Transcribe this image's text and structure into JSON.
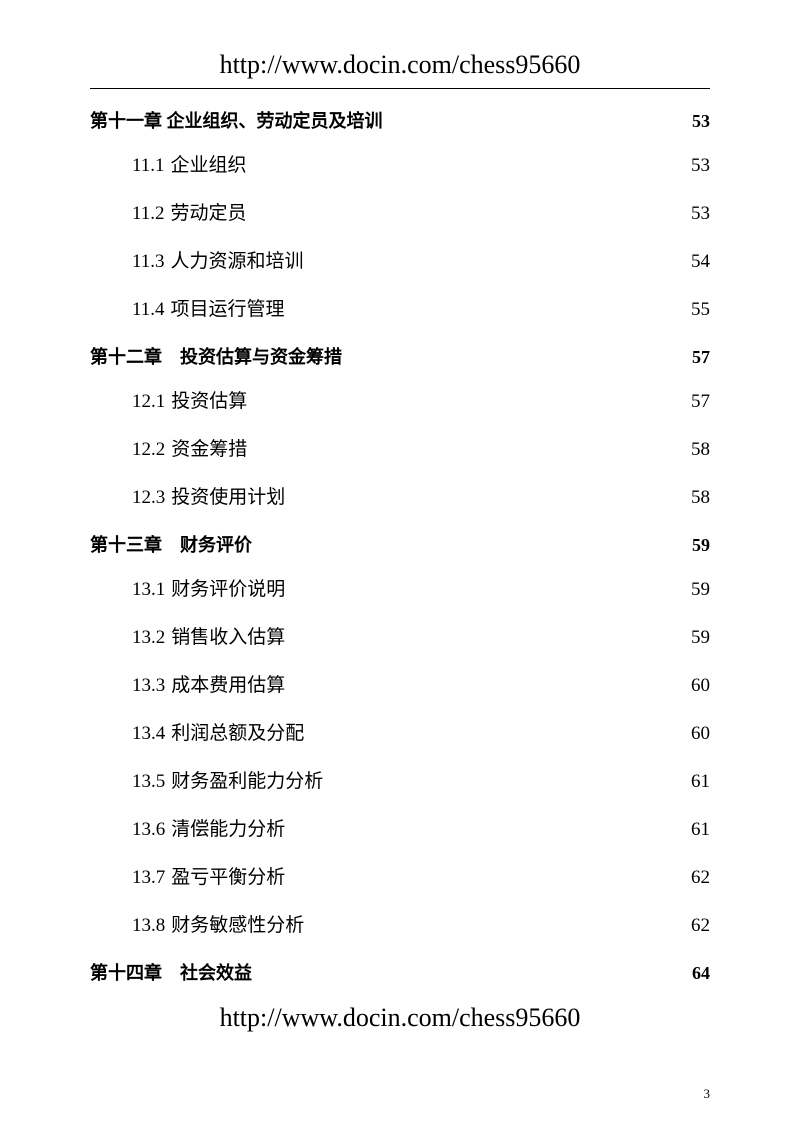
{
  "header_url": "http://www.docin.com/chess95660",
  "footer_url": "http://www.docin.com/chess95660",
  "page_number": "3",
  "toc": [
    {
      "type": "chapter",
      "label": "第十一章 企业组织、劳动定员及培训",
      "page": "53"
    },
    {
      "type": "section",
      "num": "11.1",
      "label": "企业组织",
      "page": "53"
    },
    {
      "type": "section",
      "num": "11.2",
      "label": "劳动定员",
      "page": "53"
    },
    {
      "type": "section",
      "num": "11.3",
      "label": "人力资源和培训",
      "page": "54"
    },
    {
      "type": "section",
      "num": "11.4",
      "label": "项目运行管理",
      "page": "55"
    },
    {
      "type": "chapter",
      "label": "第十二章　投资估算与资金筹措",
      "page": "57"
    },
    {
      "type": "section",
      "num": "12.1",
      "label": "投资估算",
      "page": "57"
    },
    {
      "type": "section",
      "num": "12.2",
      "label": "资金筹措",
      "page": "58"
    },
    {
      "type": "section",
      "num": "12.3",
      "label": "投资使用计划",
      "page": "58"
    },
    {
      "type": "chapter",
      "label": "第十三章　财务评价",
      "page": "59"
    },
    {
      "type": "section",
      "num": "13.1",
      "label": "财务评价说明",
      "page": "59"
    },
    {
      "type": "section",
      "num": "13.2",
      "label": "销售收入估算",
      "page": "59"
    },
    {
      "type": "section",
      "num": "13.3",
      "label": "成本费用估算",
      "page": "60"
    },
    {
      "type": "section",
      "num": "13.4",
      "label": "利润总额及分配",
      "page": "60"
    },
    {
      "type": "section",
      "num": "13.5",
      "label": "财务盈利能力分析",
      "page": "61"
    },
    {
      "type": "section",
      "num": "13.6",
      "label": "清偿能力分析",
      "page": "61"
    },
    {
      "type": "section",
      "num": "13.7",
      "label": "盈亏平衡分析",
      "page": "62"
    },
    {
      "type": "section",
      "num": "13.8",
      "label": "财务敏感性分析",
      "page": "62"
    },
    {
      "type": "chapter",
      "label": "第十四章　社会效益",
      "page": "64"
    }
  ]
}
